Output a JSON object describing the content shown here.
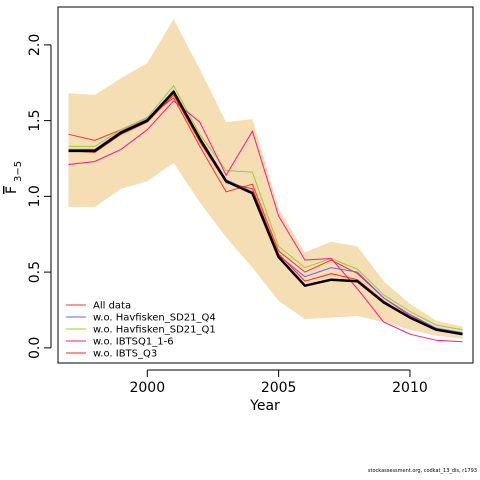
{
  "chart_data": {
    "type": "line",
    "title": "",
    "xlabel": "Year",
    "ylabel_main": "F",
    "ylabel_sub": "3−5",
    "xlim": [
      1996.6,
      2012.4
    ],
    "ylim": [
      -0.1,
      2.25
    ],
    "x_ticks": [
      2000,
      2005,
      2010
    ],
    "y_ticks": [
      0.0,
      0.5,
      1.0,
      1.5,
      2.0
    ],
    "y_tick_labels": [
      "0.0",
      "0.5",
      "1.0",
      "1.5",
      "2.0"
    ],
    "x": [
      1997,
      1998,
      1999,
      2000,
      2001,
      2002,
      2003,
      2004,
      2005,
      2006,
      2007,
      2008,
      2009,
      2010,
      2011,
      2012
    ],
    "band": {
      "color": "#f5deb3",
      "upper": [
        1.68,
        1.67,
        1.78,
        1.88,
        2.17,
        1.84,
        1.49,
        1.51,
        0.92,
        0.63,
        0.7,
        0.67,
        0.44,
        0.29,
        0.18,
        0.14
      ],
      "lower": [
        0.93,
        0.93,
        1.05,
        1.1,
        1.22,
        0.96,
        0.73,
        0.53,
        0.31,
        0.19,
        0.2,
        0.21,
        0.17,
        0.12,
        0.08,
        0.06
      ]
    },
    "main": {
      "color": "#000000",
      "values": [
        1.3,
        1.3,
        1.42,
        1.5,
        1.69,
        1.38,
        1.1,
        1.02,
        0.6,
        0.41,
        0.45,
        0.44,
        0.3,
        0.2,
        0.12,
        0.09
      ]
    },
    "series": [
      {
        "name": "All data",
        "color": "#ff3030",
        "values": [
          1.41,
          1.37,
          1.44,
          1.52,
          1.65,
          1.33,
          1.03,
          1.08,
          0.64,
          0.5,
          0.58,
          0.49,
          0.33,
          0.21,
          0.13,
          0.1
        ]
      },
      {
        "name": "w.o. Havfisken_SD21_Q4",
        "color": "#6060ff",
        "values": [
          1.31,
          1.31,
          1.43,
          1.51,
          1.7,
          1.39,
          1.11,
          1.03,
          0.61,
          0.47,
          0.53,
          0.5,
          0.33,
          0.22,
          0.13,
          0.1
        ]
      },
      {
        "name": "w.o. Havfisken_SD21_Q1",
        "color": "#9acd32",
        "values": [
          1.33,
          1.33,
          1.44,
          1.52,
          1.73,
          1.41,
          1.17,
          1.16,
          0.67,
          0.53,
          0.59,
          0.52,
          0.35,
          0.24,
          0.15,
          0.12
        ]
      },
      {
        "name": "w.o. IBTSQ1_1-6",
        "color": "#ff1493",
        "values": [
          1.21,
          1.23,
          1.31,
          1.44,
          1.63,
          1.49,
          1.14,
          1.43,
          0.87,
          0.58,
          0.59,
          0.39,
          0.17,
          0.09,
          0.05,
          0.04
        ]
      },
      {
        "name": "w.o. IBTS_Q3",
        "color": "#ff2020",
        "values": [
          1.3,
          1.29,
          1.41,
          1.49,
          1.67,
          1.36,
          1.09,
          1.05,
          0.62,
          0.44,
          0.49,
          0.45,
          0.31,
          0.2,
          0.12,
          0.09
        ]
      }
    ],
    "legend_position": "bottom-left",
    "grid": false
  },
  "footer_text": "stockassessment.org, codkat_13_dis, r1793"
}
